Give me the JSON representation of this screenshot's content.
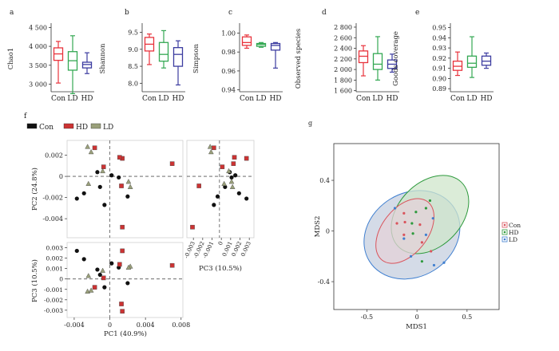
{
  "chart_data": [
    {
      "panel": "a",
      "type": "box",
      "ylabel": "Chao1",
      "categories": [
        "Con",
        "LD",
        "HD"
      ],
      "colors": [
        "#e8333c",
        "#34a853",
        "#3c3ca0"
      ],
      "yticks": [
        "3 000",
        "3 500",
        "4 000",
        "4 500"
      ],
      "ytick_values": [
        3000,
        3500,
        4000,
        4500
      ],
      "ylim": [
        2800,
        4550
      ],
      "boxes": [
        {
          "min": 3030,
          "q1": 3630,
          "median": 3800,
          "q3": 3960,
          "max": 4130
        },
        {
          "min": 2750,
          "q1": 3370,
          "median": 3620,
          "q3": 3860,
          "max": 4280
        },
        {
          "min": 3280,
          "q1": 3430,
          "median": 3520,
          "q3": 3580,
          "max": 3830
        }
      ]
    },
    {
      "panel": "b",
      "type": "box",
      "ylabel": "Shannon",
      "categories": [
        "Con",
        "LD",
        "HD"
      ],
      "colors": [
        "#e8333c",
        "#34a853",
        "#3c3ca0"
      ],
      "yticks": [
        "8.0",
        "8.5",
        "9.0",
        "9.5"
      ],
      "ytick_values": [
        8.0,
        8.5,
        9.0,
        9.5
      ],
      "ylim": [
        7.75,
        9.7
      ],
      "boxes": [
        {
          "min": 8.55,
          "q1": 8.95,
          "median": 9.15,
          "q3": 9.35,
          "max": 9.45
        },
        {
          "min": 8.45,
          "q1": 8.65,
          "median": 8.85,
          "q3": 9.2,
          "max": 9.55
        },
        {
          "min": 7.95,
          "q1": 8.5,
          "median": 8.85,
          "q3": 9.05,
          "max": 9.25
        }
      ]
    },
    {
      "panel": "c",
      "type": "box",
      "ylabel": "Simpson",
      "categories": [
        "Con",
        "LD",
        "HD"
      ],
      "colors": [
        "#e8333c",
        "#34a853",
        "#3c3ca0"
      ],
      "yticks": [
        "0.94",
        "0.96",
        "0.98",
        "1.00"
      ],
      "ytick_values": [
        0.94,
        0.96,
        0.98,
        1.0
      ],
      "ylim": [
        0.938,
        1.008
      ],
      "boxes": [
        {
          "min": 0.984,
          "q1": 0.987,
          "median": 0.99,
          "q3": 0.996,
          "max": 0.998
        },
        {
          "min": 0.985,
          "q1": 0.986,
          "median": 0.988,
          "q3": 0.989,
          "max": 0.99
        },
        {
          "min": 0.963,
          "q1": 0.982,
          "median": 0.987,
          "q3": 0.989,
          "max": 0.99
        }
      ]
    },
    {
      "panel": "d",
      "type": "box",
      "ylabel": "Observed species",
      "categories": [
        "Con",
        "LD",
        "HD"
      ],
      "colors": [
        "#e8333c",
        "#34a853",
        "#3c3ca0"
      ],
      "yticks": [
        "1 600",
        "1 800",
        "2 000",
        "2 200",
        "2 400",
        "2 600",
        "2 800"
      ],
      "ytick_values": [
        1600,
        1800,
        2000,
        2200,
        2400,
        2600,
        2800
      ],
      "ylim": [
        1580,
        2830
      ],
      "boxes": [
        {
          "min": 1880,
          "q1": 2130,
          "median": 2250,
          "q3": 2350,
          "max": 2450
        },
        {
          "min": 1800,
          "q1": 2000,
          "median": 2100,
          "q3": 2300,
          "max": 2620
        },
        {
          "min": 1950,
          "q1": 2020,
          "median": 2100,
          "q3": 2180,
          "max": 2290
        }
      ]
    },
    {
      "panel": "e",
      "type": "box",
      "ylabel": "Goods coverage",
      "categories": [
        "Con",
        "LD",
        "HD"
      ],
      "colors": [
        "#e8333c",
        "#34a853",
        "#3c3ca0"
      ],
      "yticks": [
        "0.89",
        "0.90",
        "0.91",
        "0.92",
        "0.93",
        "0.94",
        "0.95"
      ],
      "ytick_values": [
        0.89,
        0.9,
        0.91,
        0.92,
        0.93,
        0.94,
        0.95
      ],
      "ylim": [
        0.887,
        0.952
      ],
      "boxes": [
        {
          "min": 0.903,
          "q1": 0.908,
          "median": 0.912,
          "q3": 0.917,
          "max": 0.926
        },
        {
          "min": 0.901,
          "q1": 0.911,
          "median": 0.915,
          "q3": 0.922,
          "max": 0.941
        },
        {
          "min": 0.91,
          "q1": 0.913,
          "median": 0.917,
          "q3": 0.922,
          "max": 0.925
        }
      ]
    },
    {
      "panel": "f",
      "type": "scatter",
      "legend": [
        {
          "name": "Con",
          "color": "#111111",
          "shape": "circle"
        },
        {
          "name": "HD",
          "color": "#cc3333",
          "shape": "square"
        },
        {
          "name": "LD",
          "color": "#9aa07a",
          "shape": "triangle"
        }
      ],
      "axis_labels": {
        "pc1": "PC1 (40.9%)",
        "pc2": "PC2 (24.8%)",
        "pc3": "PC3 (10.5%)"
      },
      "pc1_ticks": [
        "-0.004",
        "0",
        "0.004",
        "0.008"
      ],
      "pc1_tick_values": [
        -0.004,
        0,
        0.004,
        0.008
      ],
      "pc1_range": [
        -0.0048,
        0.0082
      ],
      "pc2_ticks": [
        "0.002",
        "0",
        "-0.002",
        "-0.004"
      ],
      "pc2_tick_values": [
        0.002,
        0,
        -0.002,
        -0.004
      ],
      "pc2_range": [
        -0.0058,
        0.0034
      ],
      "pc3_ticks": [
        "0.003",
        "0.002",
        "0.001",
        "0",
        "-0.001",
        "-0.002",
        "-0.003"
      ],
      "pc3_tick_values": [
        0.003,
        0.002,
        0.001,
        0,
        -0.001,
        -0.002,
        -0.003
      ],
      "pc3_range": [
        -0.0037,
        0.0035
      ],
      "pc3_x_ticks": [
        "-0.003",
        "-0.002",
        "-0.001",
        "0",
        "0.001",
        "0.002",
        "0.003"
      ],
      "points": [
        {
          "group": "Con",
          "pc1": -0.0037,
          "pc2": -0.0021,
          "pc3": 0.0027
        },
        {
          "group": "Con",
          "pc1": -0.0029,
          "pc2": -0.0016,
          "pc3": 0.0019
        },
        {
          "group": "Con",
          "pc1": -0.0011,
          "pc2": -0.001,
          "pc3": 0.0004
        },
        {
          "group": "Con",
          "pc1": -0.0006,
          "pc2": -0.0027,
          "pc3": -0.0008
        },
        {
          "group": "Con",
          "pc1": 0.0002,
          "pc2": 0.0001,
          "pc3": 0.0015
        },
        {
          "group": "Con",
          "pc1": 0.001,
          "pc2": -0.0001,
          "pc3": 0.0011
        },
        {
          "group": "Con",
          "pc1": 0.002,
          "pc2": -0.0019,
          "pc3": -0.0004
        },
        {
          "group": "Con",
          "pc1": -0.0014,
          "pc2": 0.0004,
          "pc3": 0.0009
        },
        {
          "group": "HD",
          "pc1": 0.0014,
          "pc2": 0.0017,
          "pc3": 0.0027
        },
        {
          "group": "HD",
          "pc1": 0.0011,
          "pc2": 0.0018,
          "pc3": 0.0014
        },
        {
          "group": "HD",
          "pc1": 0.007,
          "pc2": 0.0012,
          "pc3": 0.0013
        },
        {
          "group": "HD",
          "pc1": 0.0014,
          "pc2": -0.0048,
          "pc3": -0.0031
        },
        {
          "group": "HD",
          "pc1": 0.0013,
          "pc2": -0.0009,
          "pc3": -0.0024
        },
        {
          "group": "HD",
          "pc1": -0.0017,
          "pc2": 0.0027,
          "pc3": -0.0008
        },
        {
          "group": "HD",
          "pc1": -0.0007,
          "pc2": 0.0009,
          "pc3": 0.0001
        },
        {
          "group": "LD",
          "pc1": -0.0025,
          "pc2": 0.0028,
          "pc3": -0.0012
        },
        {
          "group": "LD",
          "pc1": -0.0021,
          "pc2": 0.0023,
          "pc3": -0.0011
        },
        {
          "group": "LD",
          "pc1": -0.0024,
          "pc2": -0.0007,
          "pc3": 0.0003
        },
        {
          "group": "LD",
          "pc1": 0.0023,
          "pc2": -0.001,
          "pc3": 0.0012
        },
        {
          "group": "LD",
          "pc1": -0.0008,
          "pc2": 0.0005,
          "pc3": 0.0008
        },
        {
          "group": "LD",
          "pc1": 0.0021,
          "pc2": -0.0005,
          "pc3": 0.0011
        }
      ]
    },
    {
      "panel": "g",
      "type": "scatter",
      "xlabel": "MDS1",
      "ylabel": "MDS2",
      "xticks": [
        "-0.5",
        "0",
        "0.5"
      ],
      "xtick_values": [
        -0.5,
        0,
        0.5
      ],
      "yticks": [
        "0.4",
        "0",
        "-0.4"
      ],
      "ytick_values": [
        0.4,
        0,
        -0.4
      ],
      "xlim": [
        -0.83,
        0.82
      ],
      "ylim": [
        -0.62,
        0.69
      ],
      "legend": [
        {
          "name": "Con",
          "color": "#d9545c"
        },
        {
          "name": "HD",
          "color": "#2e9a3d"
        },
        {
          "name": "LD",
          "color": "#3f7fd0"
        }
      ],
      "ellipses": [
        {
          "group": "LD",
          "cx": -0.05,
          "cy": -0.03,
          "rx": 0.5,
          "ry": 0.33,
          "angle": -32,
          "fill": "#c5cfdf",
          "stroke": "#3f7fd0"
        },
        {
          "group": "HD",
          "cx": 0.13,
          "cy": 0.13,
          "rx": 0.45,
          "ry": 0.25,
          "angle": -46,
          "fill": "#cfe6cb",
          "stroke": "#2e9a3d"
        },
        {
          "group": "Con",
          "cx": -0.12,
          "cy": 0.0,
          "rx": 0.37,
          "ry": 0.18,
          "angle": -52,
          "fill": "#e4d2d8",
          "stroke": "#d9545c"
        }
      ],
      "points": [
        {
          "group": "Con",
          "x": -0.13,
          "y": 0.14
        },
        {
          "group": "Con",
          "x": -0.2,
          "y": 0.06
        },
        {
          "group": "Con",
          "x": -0.12,
          "y": 0.07
        },
        {
          "group": "Con",
          "x": -0.13,
          "y": -0.03
        },
        {
          "group": "Con",
          "x": 0.05,
          "y": -0.09
        },
        {
          "group": "Con",
          "x": 0.03,
          "y": 0.05
        },
        {
          "group": "Con",
          "x": 0.14,
          "y": -0.16
        },
        {
          "group": "HD",
          "x": -0.01,
          "y": 0.15
        },
        {
          "group": "HD",
          "x": 0.09,
          "y": 0.18
        },
        {
          "group": "HD",
          "x": -0.05,
          "y": 0.06
        },
        {
          "group": "HD",
          "x": 0.05,
          "y": -0.24
        },
        {
          "group": "HD",
          "x": -0.04,
          "y": -0.02
        },
        {
          "group": "HD",
          "x": 0.13,
          "y": 0.24
        },
        {
          "group": "LD",
          "x": -0.22,
          "y": 0.18
        },
        {
          "group": "LD",
          "x": 0.16,
          "y": 0.1
        },
        {
          "group": "LD",
          "x": -0.13,
          "y": -0.06
        },
        {
          "group": "LD",
          "x": 0.17,
          "y": -0.27
        },
        {
          "group": "LD",
          "x": 0.09,
          "y": -0.03
        },
        {
          "group": "LD",
          "x": -0.06,
          "y": -0.2
        },
        {
          "group": "LD",
          "x": 0.27,
          "y": -0.25
        }
      ]
    }
  ]
}
